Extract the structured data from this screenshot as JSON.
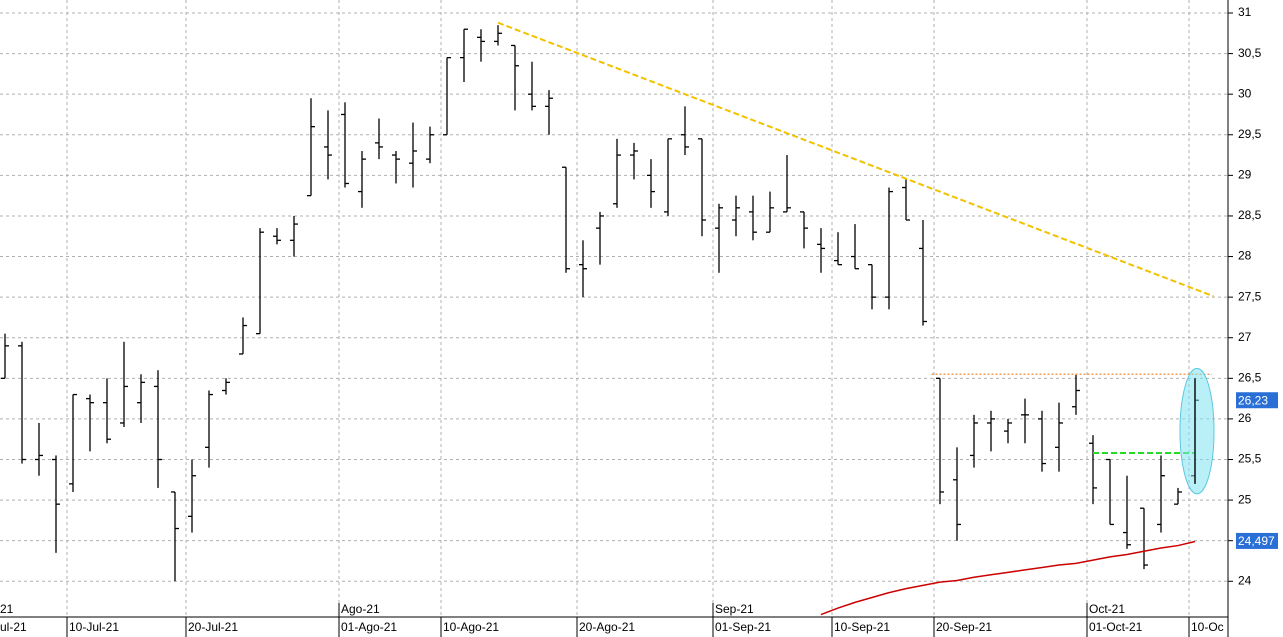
{
  "chart_data": {
    "type": "ohlc",
    "categories": [
      "ul-21",
      null,
      null,
      null,
      "10-Jul-21",
      null,
      null,
      null,
      null,
      null,
      null,
      "20-Jul-21",
      null,
      null,
      null,
      null,
      null,
      null,
      null,
      null,
      "01-Ago-21",
      null,
      null,
      null,
      null,
      null,
      "10-Ago-21",
      null,
      null,
      null,
      null,
      null,
      null,
      null,
      "20-Ago-21",
      null,
      null,
      null,
      null,
      null,
      null,
      null,
      "01-Sep-21",
      null,
      null,
      null,
      null,
      null,
      null,
      "10-Sep-21",
      null,
      null,
      null,
      null,
      null,
      "20-Sep-21",
      null,
      null,
      null,
      null,
      null,
      null,
      null,
      null,
      "01-Oct-21",
      null,
      null,
      null,
      null,
      null,
      "10-Oc"
    ],
    "months": [
      "21",
      null,
      null,
      null,
      null,
      null,
      null,
      null,
      null,
      null,
      null,
      null,
      null,
      null,
      null,
      null,
      null,
      null,
      null,
      null,
      "Ago-21",
      null,
      null,
      null,
      null,
      null,
      null,
      null,
      null,
      null,
      null,
      null,
      null,
      null,
      null,
      null,
      null,
      null,
      null,
      null,
      null,
      null,
      "Sep-21",
      null,
      null,
      null,
      null,
      null,
      null,
      null,
      null,
      null,
      null,
      null,
      null,
      null,
      null,
      null,
      null,
      null,
      null,
      null,
      null,
      null,
      "Oct-21",
      null,
      null,
      null,
      null,
      null,
      null
    ],
    "open": [
      26.5,
      26.9,
      25.5,
      25.5,
      25.2,
      26.25,
      26.2,
      25.95,
      26.2,
      26.4,
      25.1,
      24.8,
      25.65,
      26.35,
      26.8,
      27.05,
      28.25,
      28.2,
      28.75,
      29.35,
      29.75,
      28.8,
      29.4,
      29.25,
      29.15,
      29.2,
      29.5,
      30.45,
      30.7,
      30.65,
      30.6,
      30.0,
      29.85,
      29.1,
      27.9,
      28.35,
      28.65,
      29.25,
      29.0,
      28.55,
      29.5,
      29.45,
      28.35,
      28.45,
      28.55,
      28.3,
      28.55,
      28.55,
      28.15,
      27.95,
      28.0,
      27.9,
      27.5,
      28.85,
      28.1,
      26.5,
      25.25,
      25.55,
      25.95,
      25.85,
      26.05,
      26.0,
      25.65,
      26.15,
      25.7,
      25.5,
      24.6,
      24.9,
      24.7,
      24.95,
      25.3
    ],
    "high": [
      27.05,
      26.95,
      25.95,
      25.55,
      26.3,
      26.3,
      26.5,
      26.95,
      26.55,
      26.6,
      25.1,
      25.5,
      26.35,
      26.5,
      27.25,
      28.35,
      28.35,
      28.5,
      29.95,
      29.8,
      29.9,
      29.3,
      29.7,
      29.3,
      29.65,
      29.6,
      30.45,
      30.8,
      30.8,
      30.85,
      30.6,
      30.4,
      30.05,
      29.1,
      28.2,
      28.55,
      29.45,
      29.4,
      29.2,
      29.45,
      29.85,
      29.45,
      28.65,
      28.75,
      28.75,
      28.8,
      29.25,
      28.55,
      28.35,
      28.3,
      28.4,
      27.9,
      28.85,
      28.95,
      28.45,
      26.5,
      25.65,
      26.05,
      26.1,
      26.0,
      26.25,
      26.1,
      26.2,
      26.55,
      25.8,
      25.5,
      25.3,
      24.9,
      25.55,
      25.15,
      26.5
    ],
    "low": [
      26.5,
      25.45,
      25.3,
      24.35,
      25.1,
      25.6,
      25.7,
      25.9,
      25.95,
      25.15,
      24.0,
      24.6,
      25.4,
      26.3,
      26.8,
      27.05,
      28.15,
      28.0,
      28.75,
      28.95,
      28.85,
      28.6,
      29.2,
      28.9,
      28.85,
      29.15,
      29.5,
      30.15,
      30.4,
      30.6,
      29.8,
      29.8,
      29.5,
      27.8,
      27.5,
      27.9,
      28.6,
      28.95,
      28.6,
      28.5,
      29.25,
      28.25,
      27.8,
      28.25,
      28.2,
      28.3,
      28.55,
      28.1,
      27.8,
      27.9,
      27.85,
      27.35,
      27.35,
      28.45,
      27.15,
      24.95,
      24.5,
      25.4,
      25.6,
      25.7,
      25.7,
      25.35,
      25.35,
      26.05,
      24.95,
      24.7,
      24.4,
      24.15,
      24.6,
      24.95,
      25.2
    ],
    "close": [
      26.9,
      25.5,
      25.55,
      24.95,
      26.3,
      26.2,
      25.75,
      26.4,
      26.45,
      25.5,
      24.65,
      25.3,
      26.3,
      26.45,
      27.15,
      28.3,
      28.2,
      28.4,
      29.6,
      29.25,
      28.9,
      29.2,
      29.35,
      29.2,
      29.3,
      29.5,
      30.45,
      30.8,
      30.65,
      30.75,
      30.35,
      29.85,
      29.95,
      27.85,
      27.85,
      28.5,
      29.25,
      29.3,
      28.8,
      29.45,
      29.35,
      28.45,
      28.6,
      28.6,
      28.3,
      28.6,
      28.6,
      28.35,
      28.1,
      27.9,
      27.85,
      27.5,
      28.8,
      28.45,
      27.2,
      25.1,
      24.7,
      25.95,
      26.0,
      25.95,
      26.05,
      25.45,
      25.95,
      26.35,
      25.15,
      24.7,
      24.45,
      24.2,
      25.3,
      25.1,
      26.23
    ],
    "color": "#000000",
    "moving_average": {
      "color": "#cc0000",
      "values": [
        null,
        null,
        null,
        null,
        null,
        null,
        null,
        null,
        null,
        null,
        null,
        null,
        null,
        null,
        null,
        null,
        null,
        null,
        null,
        null,
        null,
        null,
        null,
        null,
        null,
        null,
        null,
        null,
        null,
        null,
        null,
        null,
        null,
        null,
        null,
        null,
        null,
        null,
        null,
        null,
        null,
        null,
        null,
        null,
        null,
        null,
        null,
        null,
        23.59,
        23.67,
        23.74,
        23.8,
        23.86,
        23.91,
        23.95,
        23.99,
        24.01,
        24.05,
        24.08,
        24.11,
        24.14,
        24.17,
        24.2,
        24.22,
        24.26,
        24.3,
        24.33,
        24.37,
        24.41,
        24.44,
        24.49
      ]
    },
    "trendline": {
      "color": "#f2c200",
      "x": [
        29,
        71.1
      ],
      "y": [
        30.88,
        27.51
      ]
    },
    "resistance": {
      "color": "#f0a050",
      "x": [
        54.5,
        71
      ],
      "y": [
        26.55,
        26.55
      ]
    },
    "breakout": {
      "color": "#22dd22",
      "x": [
        64,
        70
      ],
      "y": [
        25.58,
        25.58
      ]
    },
    "price_tags": [
      {
        "value": 26.23,
        "label": "26,23"
      },
      {
        "value": 24.497,
        "label": "24,497"
      }
    ],
    "ylim": [
      23.56,
      31.16
    ],
    "yticks": [
      24,
      {
        "value": 24.5,
        "label": "24,5"
      },
      25,
      {
        "value": 25.5,
        "label": "25,5"
      },
      26,
      {
        "value": 26.5,
        "label": "26,5"
      },
      27,
      {
        "value": 27.5,
        "label": "27,5"
      },
      28,
      {
        "value": 28.5,
        "label": "28,5"
      },
      29,
      {
        "value": 29.5,
        "label": "29,5"
      },
      30,
      {
        "value": 30.5,
        "label": "30,5"
      },
      31
    ],
    "grid": true
  }
}
